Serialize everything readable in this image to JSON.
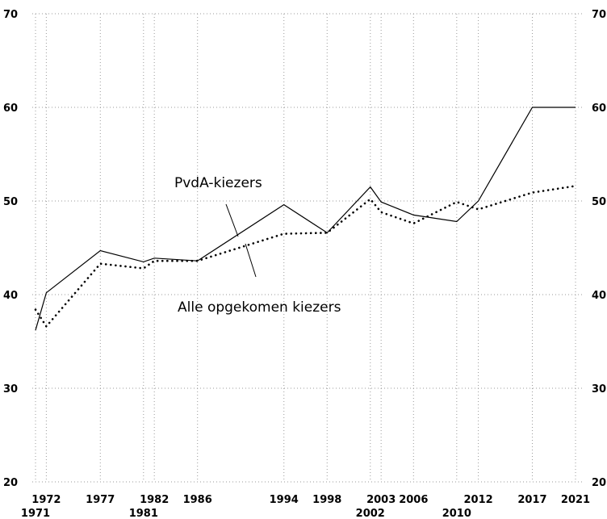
{
  "chart_data": {
    "type": "line",
    "x": [
      1971,
      1972,
      1977,
      1981,
      1982,
      1986,
      1994,
      1998,
      2002,
      2003,
      2006,
      2010,
      2012,
      2017,
      2021
    ],
    "x_tick_labels_row1": [
      "1972",
      "1977",
      "1982",
      "1986",
      "1994",
      "1998",
      "2003",
      "2006",
      "2012",
      "2017",
      "2021"
    ],
    "x_tick_labels_row2": [
      "1971",
      "1981",
      "2002",
      "2010"
    ],
    "ylim": [
      20,
      70
    ],
    "y_ticks": [
      "20",
      "30",
      "40",
      "50",
      "60",
      "70"
    ],
    "grid": true,
    "series": [
      {
        "name": "PvdA-kiezers",
        "style": "solid",
        "color": "#000000",
        "values": [
          36.2,
          40.2,
          44.7,
          43.5,
          43.9,
          43.6,
          49.6,
          46.6,
          51.5,
          49.9,
          48.5,
          47.8,
          50.0,
          60.0,
          60.0
        ]
      },
      {
        "name": "Alle opgekomen kiezers",
        "style": "dotted",
        "color": "#000000",
        "values": [
          38.4,
          36.6,
          43.3,
          42.8,
          43.6,
          43.6,
          46.5,
          46.6,
          50.2,
          48.8,
          47.6,
          49.9,
          49.1,
          50.9,
          51.6
        ]
      }
    ]
  }
}
